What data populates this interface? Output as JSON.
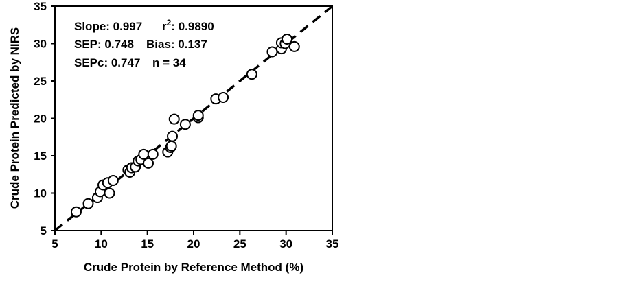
{
  "chart_data": {
    "type": "scatter",
    "title": "",
    "xlabel": "Crude Protein by Reference Method  (%)",
    "ylabel": "Crude Protein Predicted by NIRS",
    "xlim": [
      5,
      35
    ],
    "ylim": [
      5,
      35
    ],
    "x_ticks": [
      5,
      10,
      15,
      20,
      25,
      30,
      35
    ],
    "y_ticks": [
      5,
      10,
      15,
      20,
      25,
      30,
      35
    ],
    "grid": false,
    "marker": "open-circle",
    "reference_line": {
      "style": "dashed",
      "from": [
        5,
        5
      ],
      "to": [
        35,
        35
      ]
    },
    "annotations": {
      "slope": "Slope: 0.997",
      "r2_prefix": "r",
      "r2_sup": "2",
      "r2_value": ": 0.9890",
      "sep": "SEP: 0.748",
      "bias": "Bias: 0.137",
      "sepc": "SEPc: 0.747",
      "n": "n = 34"
    },
    "points": [
      {
        "x": 7.3,
        "y": 7.5
      },
      {
        "x": 8.6,
        "y": 8.6
      },
      {
        "x": 9.6,
        "y": 9.4
      },
      {
        "x": 9.9,
        "y": 10.2
      },
      {
        "x": 10.2,
        "y": 11.1
      },
      {
        "x": 10.9,
        "y": 10.0
      },
      {
        "x": 10.7,
        "y": 11.4
      },
      {
        "x": 11.3,
        "y": 11.7
      },
      {
        "x": 12.9,
        "y": 13.1
      },
      {
        "x": 13.1,
        "y": 12.8
      },
      {
        "x": 13.3,
        "y": 13.4
      },
      {
        "x": 13.7,
        "y": 13.5
      },
      {
        "x": 14.0,
        "y": 14.3
      },
      {
        "x": 14.3,
        "y": 14.5
      },
      {
        "x": 14.6,
        "y": 15.2
      },
      {
        "x": 15.1,
        "y": 14.0
      },
      {
        "x": 15.6,
        "y": 15.2
      },
      {
        "x": 17.2,
        "y": 15.5
      },
      {
        "x": 17.5,
        "y": 16.1
      },
      {
        "x": 17.6,
        "y": 16.3
      },
      {
        "x": 17.7,
        "y": 17.6
      },
      {
        "x": 17.9,
        "y": 19.9
      },
      {
        "x": 19.1,
        "y": 19.2
      },
      {
        "x": 20.5,
        "y": 20.1
      },
      {
        "x": 20.5,
        "y": 20.4
      },
      {
        "x": 22.4,
        "y": 22.6
      },
      {
        "x": 23.2,
        "y": 22.8
      },
      {
        "x": 26.3,
        "y": 25.9
      },
      {
        "x": 28.5,
        "y": 28.9
      },
      {
        "x": 29.5,
        "y": 29.3
      },
      {
        "x": 29.5,
        "y": 30.1
      },
      {
        "x": 29.9,
        "y": 30.0
      },
      {
        "x": 30.1,
        "y": 30.6
      },
      {
        "x": 30.9,
        "y": 29.6
      }
    ]
  }
}
